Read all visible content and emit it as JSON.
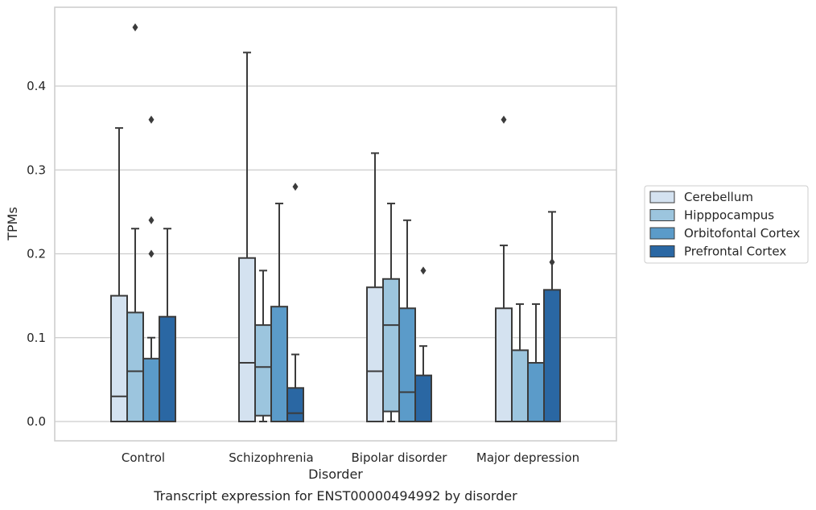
{
  "chart_data": {
    "type": "box",
    "title": "",
    "caption": "Transcript expression for ENST00000494992 by disorder",
    "xlabel": "Disorder",
    "ylabel": "TPMs",
    "ylim": [
      -0.023,
      0.495
    ],
    "yticks": [
      0.0,
      0.1,
      0.2,
      0.3,
      0.4
    ],
    "ytick_labels": [
      "0.0",
      "0.1",
      "0.2",
      "0.3",
      "0.4"
    ],
    "grid": "horizontal",
    "legend_position": "right",
    "categories": [
      "Control",
      "Schizophrenia",
      "Bipolar disorder",
      "Major depression"
    ],
    "series": [
      {
        "name": "Cerebellum",
        "color": "#d4e2f0",
        "boxes": [
          {
            "whislo": 0.0,
            "q1": 0.0,
            "med": 0.03,
            "q3": 0.15,
            "whishi": 0.35,
            "fliers": []
          },
          {
            "whislo": 0.0,
            "q1": 0.0,
            "med": 0.07,
            "q3": 0.195,
            "whishi": 0.44,
            "fliers": []
          },
          {
            "whislo": 0.0,
            "q1": 0.0,
            "med": 0.06,
            "q3": 0.16,
            "whishi": 0.32,
            "fliers": []
          },
          {
            "whislo": 0.0,
            "q1": 0.0,
            "med": 0.0,
            "q3": 0.135,
            "whishi": 0.21,
            "fliers": [
              0.36
            ]
          }
        ]
      },
      {
        "name": "Hipppocampus",
        "color": "#9cc5de",
        "boxes": [
          {
            "whislo": 0.0,
            "q1": 0.0,
            "med": 0.06,
            "q3": 0.13,
            "whishi": 0.23,
            "fliers": [
              0.47
            ]
          },
          {
            "whislo": 0.0,
            "q1": 0.007,
            "med": 0.065,
            "q3": 0.115,
            "whishi": 0.18,
            "fliers": []
          },
          {
            "whislo": 0.0,
            "q1": 0.012,
            "med": 0.115,
            "q3": 0.17,
            "whishi": 0.26,
            "fliers": []
          },
          {
            "whislo": 0.0,
            "q1": 0.0,
            "med": 0.0,
            "q3": 0.085,
            "whishi": 0.14,
            "fliers": []
          }
        ]
      },
      {
        "name": "Orbitofontal Cortex",
        "color": "#5b9bc9",
        "boxes": [
          {
            "whislo": 0.0,
            "q1": 0.0,
            "med": 0.0,
            "q3": 0.075,
            "whishi": 0.1,
            "fliers": [
              0.36,
              0.24,
              0.2
            ]
          },
          {
            "whislo": 0.0,
            "q1": 0.0,
            "med": 0.0,
            "q3": 0.137,
            "whishi": 0.26,
            "fliers": []
          },
          {
            "whislo": 0.0,
            "q1": 0.0,
            "med": 0.035,
            "q3": 0.135,
            "whishi": 0.24,
            "fliers": []
          },
          {
            "whislo": 0.0,
            "q1": 0.0,
            "med": 0.0,
            "q3": 0.07,
            "whishi": 0.14,
            "fliers": []
          }
        ]
      },
      {
        "name": "Prefrontal Cortex",
        "color": "#2a67a3",
        "boxes": [
          {
            "whislo": 0.0,
            "q1": 0.0,
            "med": 0.0,
            "q3": 0.125,
            "whishi": 0.23,
            "fliers": []
          },
          {
            "whislo": 0.0,
            "q1": 0.0,
            "med": 0.01,
            "q3": 0.04,
            "whishi": 0.08,
            "fliers": [
              0.28
            ]
          },
          {
            "whislo": 0.0,
            "q1": 0.0,
            "med": 0.0,
            "q3": 0.055,
            "whishi": 0.09,
            "fliers": [
              0.18
            ]
          },
          {
            "whislo": 0.0,
            "q1": 0.0,
            "med": 0.0,
            "q3": 0.157,
            "whishi": 0.25,
            "fliers": [
              0.19
            ]
          }
        ]
      }
    ]
  }
}
